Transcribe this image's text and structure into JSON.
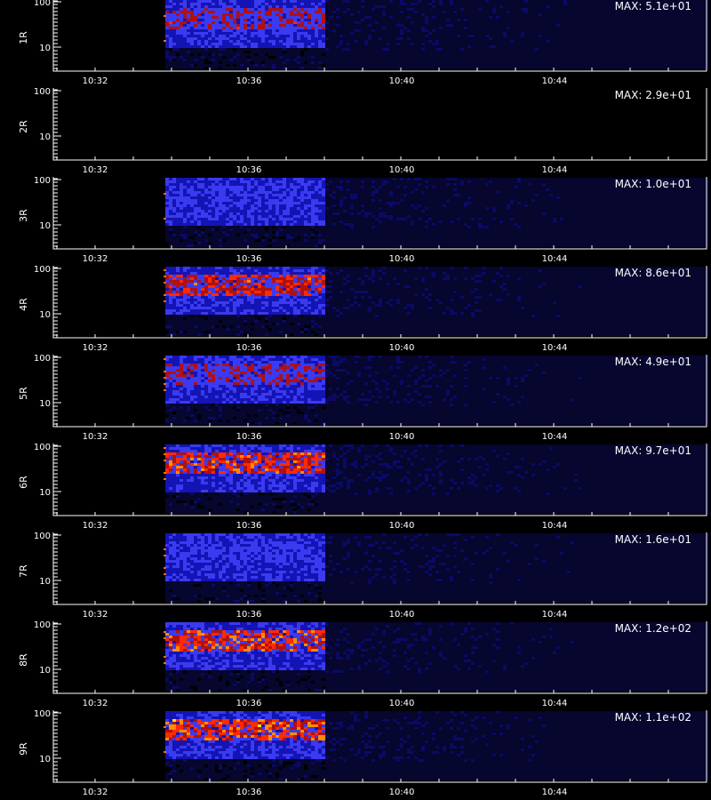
{
  "colors": {
    "background": "#000000",
    "axis": "#ffffff",
    "colormap": [
      "#000000",
      "#06062e",
      "#0a0a66",
      "#1414b4",
      "#3a3af0",
      "#b01010",
      "#ff2a00",
      "#ff8c00",
      "#ffe000"
    ]
  },
  "chart_data": {
    "type": "heatmap",
    "x_ticks": [
      "10:32",
      "10:36",
      "10:40",
      "10:44"
    ],
    "y_ticks": [
      "100",
      "10"
    ],
    "y_scale": "log",
    "panels": [
      {
        "label": "1R",
        "max_text": "MAX: 5.1e+01",
        "max": 51
      },
      {
        "label": "2R",
        "max_text": "MAX: 2.9e+01",
        "max": 29
      },
      {
        "label": "3R",
        "max_text": "MAX: 1.0e+01",
        "max": 10
      },
      {
        "label": "4R",
        "max_text": "MAX: 8.6e+01",
        "max": 86
      },
      {
        "label": "5R",
        "max_text": "MAX: 4.9e+01",
        "max": 49
      },
      {
        "label": "6R",
        "max_text": "MAX: 9.7e+01",
        "max": 97
      },
      {
        "label": "7R",
        "max_text": "MAX: 1.6e+01",
        "max": 16
      },
      {
        "label": "8R",
        "max_text": "MAX: 1.2e+02",
        "max": 120
      },
      {
        "label": "9R",
        "max_text": "MAX: 1.1e+02",
        "max": 110
      }
    ]
  }
}
